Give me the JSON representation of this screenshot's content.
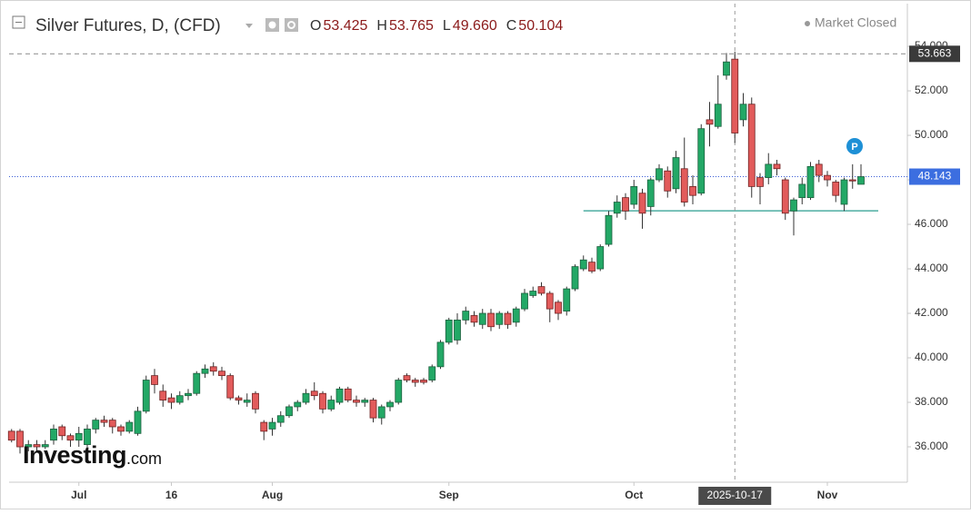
{
  "chart_data": {
    "type": "candlestick",
    "title": "Silver Futures, D, (CFD)",
    "ohlc_readout": [
      {
        "key": "O",
        "value": "53.425"
      },
      {
        "key": "H",
        "value": "53.765"
      },
      {
        "key": "L",
        "value": "49.660"
      },
      {
        "key": "C",
        "value": "50.104"
      }
    ],
    "status": "Market Closed",
    "watermark": {
      "brand": "Investing",
      "suffix": ".com"
    },
    "up_color": "#23a866",
    "down_color": "#e25b5b",
    "ylim": [
      34.45,
      55.92
    ],
    "yticks": [
      {
        "value": 36,
        "label": "36.000"
      },
      {
        "value": 38,
        "label": "38.000"
      },
      {
        "value": 40,
        "label": "40.000"
      },
      {
        "value": 42,
        "label": "42.000"
      },
      {
        "value": 44,
        "label": "44.000"
      },
      {
        "value": 46,
        "label": "46.000"
      },
      {
        "value": 48,
        "label": "48.000"
      },
      {
        "value": 50,
        "label": "50.000"
      },
      {
        "value": 52,
        "label": "52.000"
      },
      {
        "value": 54,
        "label": "54.000"
      }
    ],
    "xticks": [
      {
        "value": "2025-07-01",
        "label": "Jul"
      },
      {
        "value": "2025-07-16",
        "label": "16"
      },
      {
        "value": "2025-08-01",
        "label": "Aug"
      },
      {
        "value": "2025-09-01",
        "label": "Sep"
      },
      {
        "value": "2025-10-01",
        "label": "Oct"
      },
      {
        "value": "2025-11-03",
        "label": "Nov"
      }
    ],
    "crosshair_x": "2025-10-17",
    "price_lines": [
      {
        "value": 53.663,
        "label": "53.663",
        "style": "dashed",
        "color": "#8a8a8a",
        "label_color": "#3a3a3a"
      },
      {
        "value": 48.143,
        "label": "48.143",
        "style": "dotted",
        "color": "#3c5fd6",
        "label_color": "#3c6ee0"
      }
    ],
    "trend_lines": [
      {
        "start": "2025-09-23",
        "value": 46.61,
        "color": "#2a9d8f"
      }
    ],
    "candles": [
      [
        "2025-06-19",
        36.7,
        36.8,
        36.2,
        36.3
      ],
      [
        "2025-06-20",
        36.7,
        36.8,
        35.7,
        36.0
      ],
      [
        "2025-06-23",
        36.0,
        36.3,
        35.8,
        36.1
      ],
      [
        "2025-06-24",
        36.1,
        36.3,
        35.8,
        36.0
      ],
      [
        "2025-06-25",
        36.0,
        36.3,
        35.9,
        36.1
      ],
      [
        "2025-06-26",
        36.3,
        37.0,
        36.1,
        36.8
      ],
      [
        "2025-06-27",
        36.9,
        37.0,
        36.3,
        36.5
      ],
      [
        "2025-06-30",
        36.5,
        36.6,
        36.0,
        36.3
      ],
      [
        "2025-07-01",
        36.3,
        36.9,
        36.0,
        36.6
      ],
      [
        "2025-07-02",
        36.1,
        37.0,
        36.0,
        36.8
      ],
      [
        "2025-07-03",
        36.8,
        37.3,
        36.6,
        37.2
      ],
      [
        "2025-07-04",
        37.2,
        37.4,
        36.9,
        37.1
      ],
      [
        "2025-07-07",
        37.2,
        37.3,
        36.6,
        36.9
      ],
      [
        "2025-07-08",
        36.9,
        37.0,
        36.5,
        36.7
      ],
      [
        "2025-07-09",
        36.7,
        37.2,
        36.6,
        37.1
      ],
      [
        "2025-07-10",
        36.6,
        37.8,
        36.5,
        37.6
      ],
      [
        "2025-07-11",
        37.6,
        39.2,
        37.5,
        39.0
      ],
      [
        "2025-07-14",
        39.2,
        39.5,
        38.4,
        38.8
      ],
      [
        "2025-07-15",
        38.5,
        38.8,
        37.8,
        38.1
      ],
      [
        "2025-07-16",
        38.2,
        38.4,
        37.7,
        38.0
      ],
      [
        "2025-07-17",
        38.0,
        38.5,
        37.9,
        38.3
      ],
      [
        "2025-07-18",
        38.3,
        38.6,
        38.1,
        38.4
      ],
      [
        "2025-07-21",
        38.4,
        39.4,
        38.3,
        39.3
      ],
      [
        "2025-07-22",
        39.3,
        39.7,
        39.1,
        39.5
      ],
      [
        "2025-07-23",
        39.6,
        39.8,
        39.2,
        39.4
      ],
      [
        "2025-07-24",
        39.4,
        39.6,
        39.0,
        39.2
      ],
      [
        "2025-07-25",
        39.2,
        39.3,
        38.1,
        38.2
      ],
      [
        "2025-07-28",
        38.2,
        38.3,
        37.9,
        38.1
      ],
      [
        "2025-07-29",
        38.0,
        38.4,
        37.8,
        38.1
      ],
      [
        "2025-07-30",
        38.4,
        38.5,
        37.5,
        37.7
      ],
      [
        "2025-07-31",
        37.1,
        37.2,
        36.3,
        36.7
      ],
      [
        "2025-08-01",
        36.8,
        37.3,
        36.5,
        37.1
      ],
      [
        "2025-08-04",
        37.1,
        37.6,
        36.9,
        37.4
      ],
      [
        "2025-08-05",
        37.4,
        37.9,
        37.3,
        37.8
      ],
      [
        "2025-08-06",
        37.8,
        38.1,
        37.6,
        38.0
      ],
      [
        "2025-08-07",
        38.0,
        38.6,
        37.9,
        38.4
      ],
      [
        "2025-08-08",
        38.5,
        38.9,
        38.1,
        38.3
      ],
      [
        "2025-08-11",
        38.4,
        38.5,
        37.5,
        37.7
      ],
      [
        "2025-08-12",
        37.7,
        38.3,
        37.6,
        38.1
      ],
      [
        "2025-08-13",
        38.0,
        38.7,
        37.9,
        38.6
      ],
      [
        "2025-08-14",
        38.6,
        38.7,
        38.0,
        38.1
      ],
      [
        "2025-08-15",
        38.1,
        38.3,
        37.8,
        38.0
      ],
      [
        "2025-08-18",
        38.0,
        38.2,
        37.8,
        38.1
      ],
      [
        "2025-08-19",
        38.1,
        38.2,
        37.1,
        37.3
      ],
      [
        "2025-08-20",
        37.3,
        37.9,
        37.0,
        37.8
      ],
      [
        "2025-08-21",
        37.8,
        38.1,
        37.6,
        38.0
      ],
      [
        "2025-08-22",
        38.0,
        39.1,
        37.9,
        39.0
      ],
      [
        "2025-08-25",
        39.2,
        39.3,
        38.9,
        39.0
      ],
      [
        "2025-08-26",
        39.0,
        39.1,
        38.7,
        38.9
      ],
      [
        "2025-08-27",
        39.0,
        39.1,
        38.8,
        38.9
      ],
      [
        "2025-08-28",
        39.0,
        39.7,
        38.9,
        39.6
      ],
      [
        "2025-08-29",
        39.6,
        40.8,
        39.5,
        40.7
      ],
      [
        "2025-09-01",
        40.7,
        41.8,
        40.6,
        41.7
      ],
      [
        "2025-09-02",
        40.8,
        42.0,
        40.6,
        41.7
      ],
      [
        "2025-09-03",
        41.7,
        42.3,
        41.5,
        42.1
      ],
      [
        "2025-09-04",
        41.9,
        42.1,
        41.4,
        41.6
      ],
      [
        "2025-09-05",
        41.5,
        42.2,
        41.3,
        42.0
      ],
      [
        "2025-09-08",
        42.0,
        42.2,
        41.2,
        41.4
      ],
      [
        "2025-09-09",
        41.5,
        42.1,
        41.3,
        42.0
      ],
      [
        "2025-09-10",
        42.0,
        42.1,
        41.3,
        41.5
      ],
      [
        "2025-09-11",
        41.6,
        42.3,
        41.4,
        42.2
      ],
      [
        "2025-09-12",
        42.2,
        43.1,
        42.1,
        42.9
      ],
      [
        "2025-09-15",
        42.8,
        43.2,
        42.7,
        43.0
      ],
      [
        "2025-09-16",
        43.2,
        43.4,
        42.8,
        42.9
      ],
      [
        "2025-09-17",
        42.9,
        43.0,
        41.6,
        42.2
      ],
      [
        "2025-09-18",
        42.5,
        42.6,
        41.7,
        42.0
      ],
      [
        "2025-09-19",
        42.1,
        43.2,
        41.9,
        43.1
      ],
      [
        "2025-09-22",
        43.1,
        44.2,
        43.0,
        44.1
      ],
      [
        "2025-09-23",
        44.0,
        44.6,
        43.9,
        44.4
      ],
      [
        "2025-09-24",
        44.3,
        44.5,
        43.8,
        43.9
      ],
      [
        "2025-09-25",
        44.0,
        45.1,
        43.9,
        45.0
      ],
      [
        "2025-09-26",
        45.1,
        46.6,
        45.0,
        46.4
      ],
      [
        "2025-09-29",
        46.5,
        47.3,
        46.3,
        47.0
      ],
      [
        "2025-09-30",
        47.2,
        47.4,
        46.2,
        46.6
      ],
      [
        "2025-10-01",
        46.9,
        48.0,
        46.7,
        47.7
      ],
      [
        "2025-10-02",
        47.4,
        47.6,
        45.8,
        46.5
      ],
      [
        "2025-10-03",
        46.8,
        48.1,
        46.4,
        48.0
      ],
      [
        "2025-10-06",
        48.0,
        48.7,
        47.9,
        48.5
      ],
      [
        "2025-10-07",
        48.4,
        48.6,
        47.2,
        47.5
      ],
      [
        "2025-10-08",
        47.6,
        49.3,
        47.4,
        49.0
      ],
      [
        "2025-10-09",
        48.5,
        49.9,
        46.8,
        47.0
      ],
      [
        "2025-10-10",
        47.7,
        48.2,
        46.9,
        47.3
      ],
      [
        "2025-10-13",
        47.4,
        50.5,
        47.3,
        50.3
      ],
      [
        "2025-10-14",
        50.7,
        51.5,
        49.5,
        50.5
      ],
      [
        "2025-10-15",
        50.4,
        52.7,
        50.3,
        51.4
      ],
      [
        "2025-10-16",
        52.7,
        53.7,
        52.5,
        53.3
      ],
      [
        "2025-10-17",
        53.425,
        53.765,
        49.66,
        50.104
      ],
      [
        "2025-10-20",
        50.7,
        51.9,
        50.4,
        51.4
      ],
      [
        "2025-10-21",
        51.4,
        51.7,
        47.2,
        47.7
      ],
      [
        "2025-10-22",
        48.1,
        48.3,
        46.9,
        47.7
      ],
      [
        "2025-10-23",
        48.1,
        49.2,
        47.8,
        48.7
      ],
      [
        "2025-10-24",
        48.7,
        48.9,
        48.2,
        48.5
      ],
      [
        "2025-10-27",
        48.0,
        48.1,
        46.2,
        46.5
      ],
      [
        "2025-10-28",
        46.6,
        47.2,
        45.5,
        47.1
      ],
      [
        "2025-10-29",
        47.2,
        48.1,
        46.9,
        47.8
      ],
      [
        "2025-10-30",
        47.2,
        48.8,
        47.1,
        48.6
      ],
      [
        "2025-10-31",
        48.7,
        48.9,
        47.9,
        48.2
      ],
      [
        "2025-11-03",
        48.2,
        48.4,
        47.7,
        48.0
      ],
      [
        "2025-11-04",
        47.9,
        48.0,
        47.0,
        47.3
      ],
      [
        "2025-11-05",
        46.9,
        48.1,
        46.6,
        48.0
      ],
      [
        "2025-11-06",
        48.0,
        48.7,
        47.6,
        47.95
      ],
      [
        "2025-11-07",
        47.8,
        48.7,
        47.8,
        48.143
      ]
    ]
  }
}
